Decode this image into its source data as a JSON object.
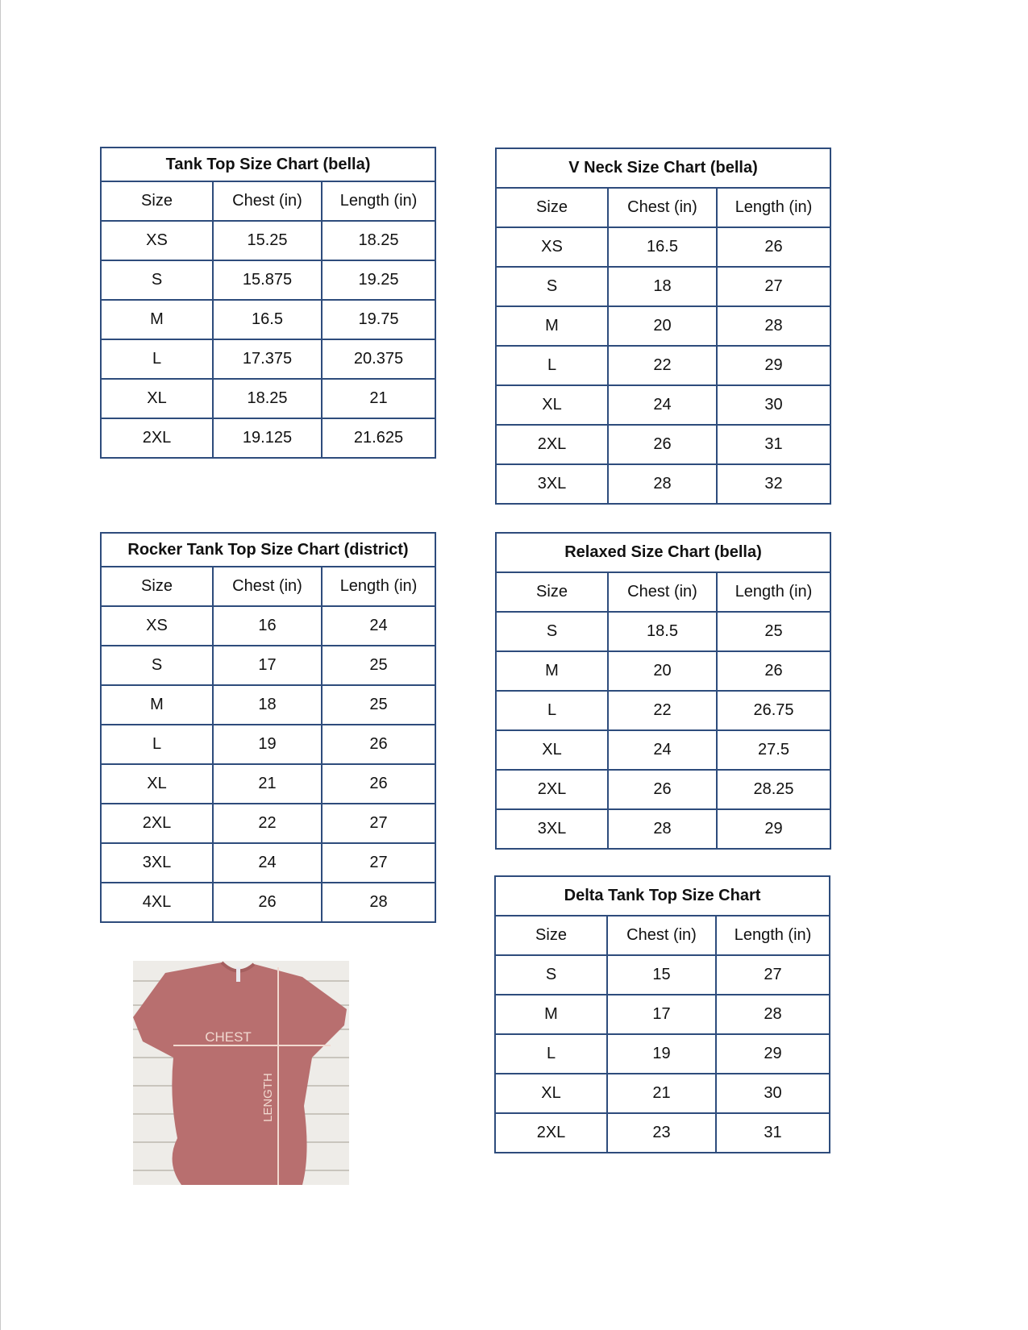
{
  "charts": [
    {
      "title": "Tank Top Size Chart  (bella)",
      "headers": [
        "Size",
        "Chest (in)",
        "Length (in)"
      ],
      "rows": [
        [
          "XS",
          "15.25",
          "18.25"
        ],
        [
          "S",
          "15.875",
          "19.25"
        ],
        [
          "M",
          "16.5",
          "19.75"
        ],
        [
          "L",
          "17.375",
          "20.375"
        ],
        [
          "XL",
          "18.25",
          "21"
        ],
        [
          "2XL",
          "19.125",
          "21.625"
        ]
      ]
    },
    {
      "title": "V Neck Size Chart  (bella)",
      "headers": [
        "Size",
        "Chest (in)",
        "Length (in)"
      ],
      "rows": [
        [
          "XS",
          "16.5",
          "26"
        ],
        [
          "S",
          "18",
          "27"
        ],
        [
          "M",
          "20",
          "28"
        ],
        [
          "L",
          "22",
          "29"
        ],
        [
          "XL",
          "24",
          "30"
        ],
        [
          "2XL",
          "26",
          "31"
        ],
        [
          "3XL",
          "28",
          "32"
        ]
      ]
    },
    {
      "title": "Rocker Tank Top Size Chart (district)",
      "headers": [
        "Size",
        "Chest (in)",
        "Length (in)"
      ],
      "rows": [
        [
          "XS",
          "16",
          "24"
        ],
        [
          "S",
          "17",
          "25"
        ],
        [
          "M",
          "18",
          "25"
        ],
        [
          "L",
          "19",
          "26"
        ],
        [
          "XL",
          "21",
          "26"
        ],
        [
          "2XL",
          "22",
          "27"
        ],
        [
          "3XL",
          "24",
          "27"
        ],
        [
          "4XL",
          "26",
          "28"
        ]
      ]
    },
    {
      "title": "Relaxed Size Chart (bella)",
      "headers": [
        "Size",
        "Chest (in)",
        "Length (in)"
      ],
      "rows": [
        [
          "S",
          "18.5",
          "25"
        ],
        [
          "M",
          "20",
          "26"
        ],
        [
          "L",
          "22",
          "26.75"
        ],
        [
          "XL",
          "24",
          "27.5"
        ],
        [
          "2XL",
          "26",
          "28.25"
        ],
        [
          "3XL",
          "28",
          "29"
        ]
      ]
    },
    {
      "title": "Delta Tank Top Size Chart",
      "headers": [
        "Size",
        "Chest (in)",
        "Length (in)"
      ],
      "rows": [
        [
          "S",
          "15",
          "27"
        ],
        [
          "M",
          "17",
          "28"
        ],
        [
          "L",
          "19",
          "29"
        ],
        [
          "XL",
          "21",
          "30"
        ],
        [
          "2XL",
          "23",
          "31"
        ]
      ]
    }
  ],
  "image": {
    "chest_label": "CHEST",
    "length_label": "LENGTH",
    "shirt_color": "#b86f6f",
    "border_color": "#2e4c7c"
  }
}
